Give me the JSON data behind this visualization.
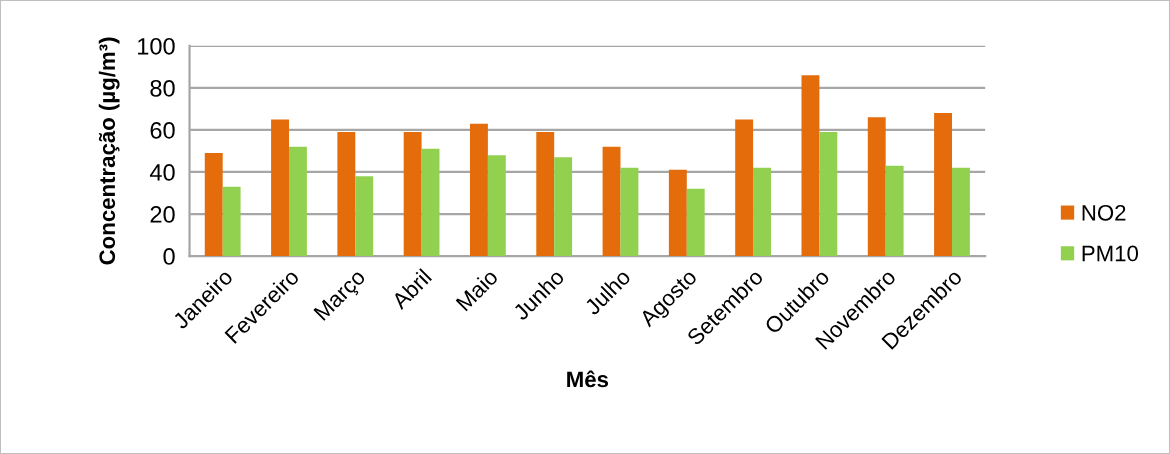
{
  "chart_data": {
    "type": "bar",
    "xlabel": "Mês",
    "ylabel": "Concentração (µg/m³)",
    "categories": [
      "Janeiro",
      "Fevereiro",
      "Março",
      "Abril",
      "Maio",
      "Junho",
      "Julho",
      "Agosto",
      "Setembro",
      "Outubro",
      "Novembro",
      "Dezembro"
    ],
    "series": [
      {
        "name": "NO2",
        "color": "#e46c0a",
        "values": [
          49,
          65,
          59,
          59,
          63,
          59,
          52,
          41,
          65,
          86,
          66,
          68
        ]
      },
      {
        "name": "PM10",
        "color": "#92d050",
        "values": [
          33,
          52,
          38,
          51,
          48,
          47,
          42,
          32,
          42,
          59,
          43,
          42
        ]
      }
    ],
    "ylim": [
      0,
      100
    ],
    "yticks": [
      0,
      20,
      40,
      60,
      80,
      100
    ],
    "grid": "y",
    "legend": "right"
  }
}
